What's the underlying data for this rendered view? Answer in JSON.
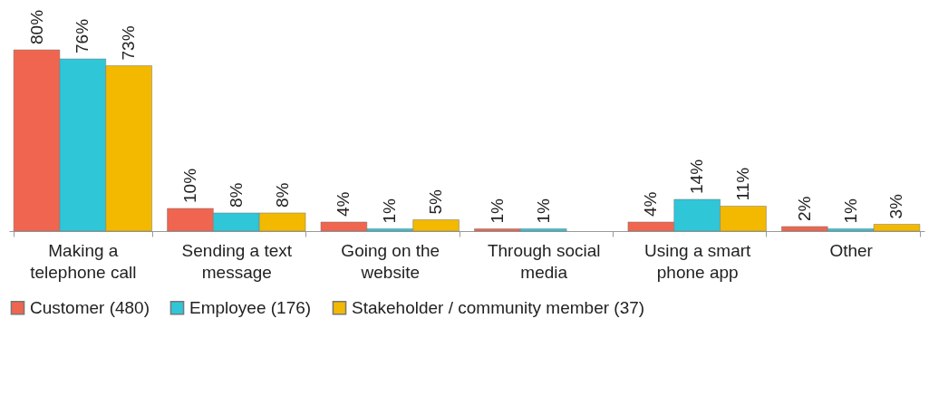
{
  "chart_data": {
    "type": "bar",
    "categories": [
      "Making a telephone call",
      "Sending a text message",
      "Going on the website",
      "Through social media",
      "Using a smart phone app",
      "Other"
    ],
    "series": [
      {
        "name": "Customer (480)",
        "color": "#f0654f",
        "values": [
          80,
          10,
          4,
          1,
          4,
          2
        ],
        "value_labels": [
          "80%",
          "10%",
          "4%",
          "1%",
          "4%",
          "2%"
        ]
      },
      {
        "name": "Employee (176)",
        "color": "#2fc6d8",
        "values": [
          76,
          8,
          1,
          1,
          14,
          1
        ],
        "value_labels": [
          "76%",
          "8%",
          "1%",
          "1%",
          "14%",
          "1%"
        ]
      },
      {
        "name": "Stakeholder / community member (37)",
        "color": "#f2b900",
        "values": [
          73,
          8,
          5,
          null,
          11,
          3
        ],
        "value_labels": [
          "73%",
          "8%",
          "5%",
          null,
          "11%",
          "3%"
        ]
      }
    ],
    "legend": "bottom",
    "grid": false
  }
}
